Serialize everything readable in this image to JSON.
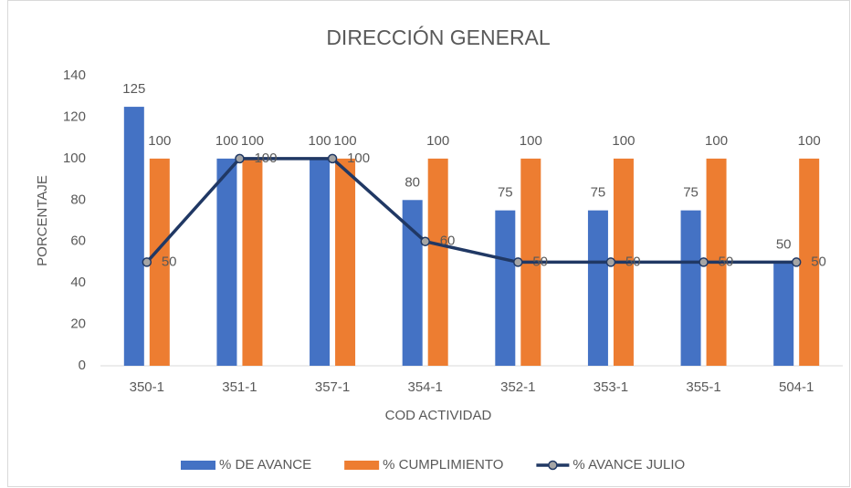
{
  "chart_data": {
    "type": "bar-line",
    "title": "DIRECCIÓN GENERAL",
    "x_label": "COD ACTIVIDAD",
    "y_label": "PORCENTAJE",
    "categories": [
      "350-1",
      "351-1",
      "357-1",
      "354-1",
      "352-1",
      "353-1",
      "355-1",
      "504-1"
    ],
    "series": [
      {
        "name": "% DE AVANCE",
        "type": "bar",
        "color": "#4472c4",
        "values": [
          125,
          100,
          100,
          80,
          75,
          75,
          75,
          50
        ]
      },
      {
        "name": "% CUMPLIMIENTO",
        "type": "bar",
        "color": "#ed7d31",
        "values": [
          100,
          100,
          100,
          100,
          100,
          100,
          100,
          100
        ]
      },
      {
        "name": "% AVANCE JULIO",
        "type": "line",
        "color": "#203864",
        "values": [
          50,
          100,
          100,
          60,
          50,
          50,
          50,
          50
        ]
      }
    ],
    "ylim": [
      0,
      140
    ],
    "yticks": [
      0,
      20,
      40,
      60,
      80,
      100,
      120,
      140
    ],
    "grid": false,
    "legend": "bottom"
  }
}
